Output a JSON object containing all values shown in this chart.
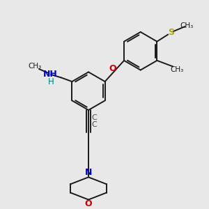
{
  "bg_color": "#e8e8e8",
  "bond_color": "#1a1a1a",
  "N_color": "#0000cc",
  "O_color": "#cc0000",
  "S_color": "#aaaa00",
  "C_color": "#4a4a4a",
  "teal_color": "#008080",
  "figsize": [
    3.0,
    3.0
  ],
  "dpi": 100,
  "xlim": [
    0,
    10
  ],
  "ylim": [
    0,
    10
  ]
}
